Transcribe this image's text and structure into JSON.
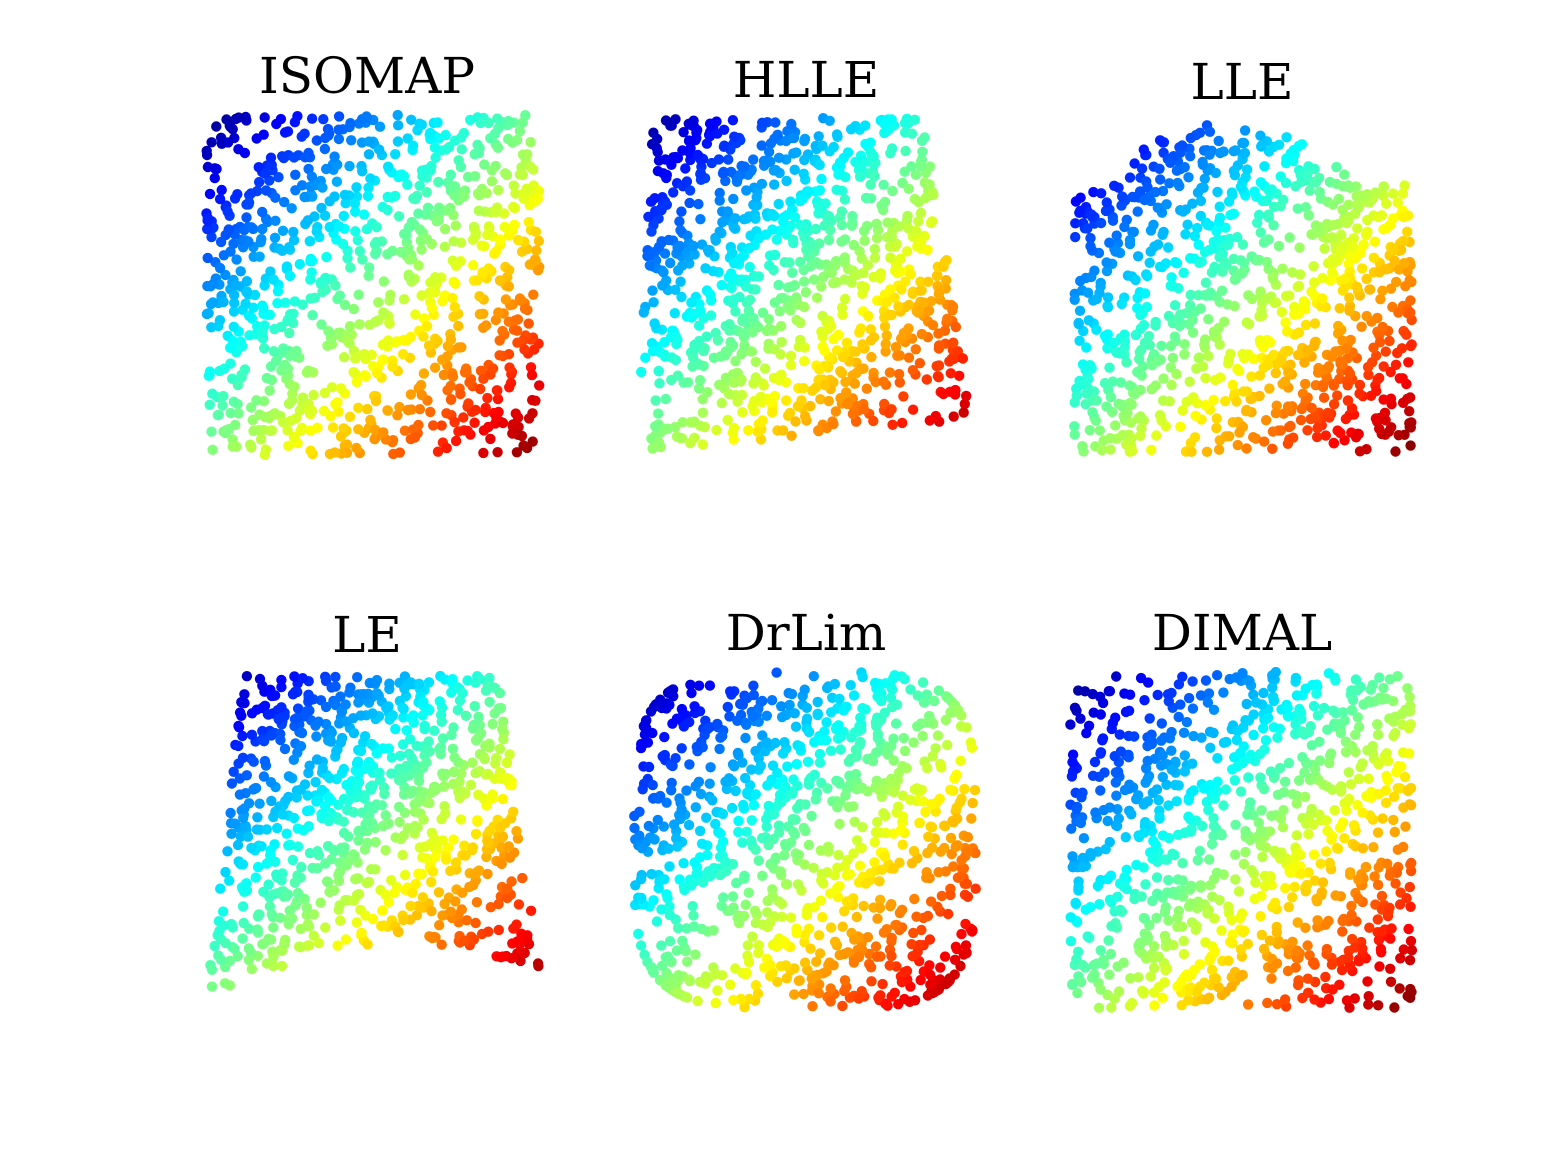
{
  "chart_data": [
    {
      "type": "scatter",
      "title": "ISOMAP",
      "shape": "square",
      "colormap": "jet",
      "color_encodes": "x + y",
      "xlim": [
        0,
        1
      ],
      "ylim": [
        0,
        1
      ],
      "grid": false,
      "axes_visible": false,
      "num_points": 950,
      "corners": {
        "top_left": [
          0.0,
          1.0
        ],
        "top_right": [
          1.0,
          1.0
        ],
        "bottom_left": [
          0.0,
          0.0
        ],
        "bottom_right": [
          1.0,
          0.0
        ]
      }
    },
    {
      "type": "scatter",
      "title": "HLLE",
      "shape": "trapezoid",
      "colormap": "jet",
      "color_encodes": "x + y",
      "xlim": [
        0,
        1
      ],
      "ylim": [
        0,
        1
      ],
      "grid": false,
      "axes_visible": false,
      "num_points": 950,
      "corners": {
        "top_left": [
          0.05,
          1.0
        ],
        "top_right": [
          0.85,
          1.0
        ],
        "bottom_left": [
          0.0,
          0.0
        ],
        "bottom_right": [
          1.0,
          0.1
        ]
      }
    },
    {
      "type": "scatter",
      "title": "LLE",
      "shape": "rounded-top",
      "colormap": "jet",
      "color_encodes": "x + y",
      "xlim": [
        0,
        1
      ],
      "ylim": [
        0,
        1
      ],
      "grid": false,
      "axes_visible": false,
      "num_points": 950,
      "corners": {
        "top_left": [
          0.0,
          0.75
        ],
        "top_right": [
          1.0,
          0.8
        ],
        "bottom_left": [
          0.0,
          0.0
        ],
        "bottom_right": [
          1.0,
          0.0
        ]
      }
    },
    {
      "type": "scatter",
      "title": "LE",
      "shape": "curved-trapezoid",
      "colormap": "jet",
      "color_encodes": "x + y",
      "xlim": [
        0,
        1
      ],
      "ylim": [
        0,
        1
      ],
      "grid": false,
      "axes_visible": false,
      "num_points": 850,
      "corners": {
        "top_left": [
          0.12,
          1.0
        ],
        "top_right": [
          0.88,
          1.0
        ],
        "bottom_left": [
          0.0,
          0.0
        ],
        "bottom_right": [
          1.0,
          0.1
        ]
      }
    },
    {
      "type": "scatter",
      "title": "DrLim",
      "shape": "rounded-square",
      "colormap": "jet",
      "color_encodes": "x + y",
      "xlim": [
        0,
        1
      ],
      "ylim": [
        0,
        1
      ],
      "grid": false,
      "axes_visible": false,
      "num_points": 950,
      "corners": {
        "top_left": [
          0.0,
          1.0
        ],
        "top_right": [
          1.0,
          1.0
        ],
        "bottom_left": [
          0.0,
          0.0
        ],
        "bottom_right": [
          1.0,
          0.0
        ]
      }
    },
    {
      "type": "scatter",
      "title": "DIMAL",
      "shape": "square",
      "colormap": "jet",
      "color_encodes": "x + y",
      "xlim": [
        0,
        1
      ],
      "ylim": [
        0,
        1
      ],
      "grid": false,
      "axes_visible": false,
      "num_points": 950,
      "corners": {
        "top_left": [
          0.0,
          1.0
        ],
        "top_right": [
          1.0,
          1.0
        ],
        "bottom_left": [
          0.0,
          0.0
        ],
        "bottom_right": [
          1.0,
          0.0
        ]
      }
    }
  ]
}
